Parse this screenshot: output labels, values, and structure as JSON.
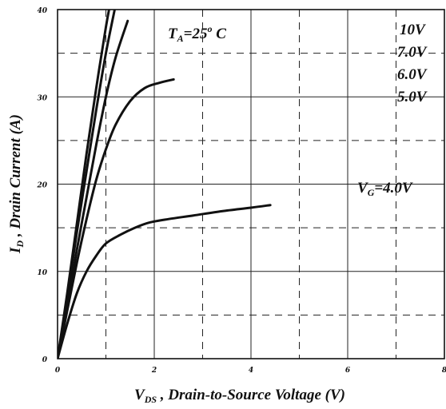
{
  "chart_data": {
    "type": "line",
    "title": "",
    "xlabel": {
      "main": "V",
      "sub": "DS",
      "rest": " , Drain-to-Source Voltage (V)"
    },
    "ylabel": {
      "main": "I",
      "sub": "D",
      "rest": " , Drain Current (A)"
    },
    "xlim": [
      0,
      8
    ],
    "ylim": [
      0,
      40
    ],
    "x_ticks": [
      0,
      2,
      4,
      6,
      8
    ],
    "y_ticks": [
      0,
      10,
      20,
      30,
      40
    ],
    "x_grid_dashed": [
      1,
      3,
      5,
      7
    ],
    "y_grid_dashed": [
      5,
      15,
      25,
      35
    ],
    "grid": true,
    "annotation": {
      "text_main": "T",
      "text_sub": "A",
      "text_rest": "=25",
      "text_sup": "o",
      "text_unit": " C"
    },
    "series": [
      {
        "name": "10V",
        "x": [
          0,
          0.2,
          0.4,
          0.6,
          0.8,
          1.0,
          1.2
        ],
        "y": [
          0,
          7,
          14.5,
          21.5,
          28.5,
          35,
          40.5
        ]
      },
      {
        "name": "7.0V",
        "x": [
          0,
          0.2,
          0.4,
          0.6,
          0.8,
          1.0,
          1.1
        ],
        "y": [
          0,
          7.5,
          15.5,
          23.5,
          31,
          38,
          41
        ]
      },
      {
        "name": "6.0V",
        "x": [
          0,
          0.2,
          0.4,
          0.6,
          0.8,
          1.0,
          1.2,
          1.45
        ],
        "y": [
          0,
          6,
          12.5,
          18.5,
          24.5,
          30,
          34.5,
          38.7
        ]
      },
      {
        "name": "5.0V",
        "x": [
          0,
          0.2,
          0.4,
          0.6,
          0.8,
          1.0,
          1.2,
          1.5,
          1.8,
          2.1,
          2.4
        ],
        "y": [
          0,
          5.5,
          11,
          16,
          20.5,
          24,
          26.8,
          29.5,
          31,
          31.6,
          32
        ]
      },
      {
        "name": "V_G=4.0V",
        "x": [
          0,
          0.2,
          0.4,
          0.6,
          0.8,
          1.0,
          1.3,
          1.6,
          1.9,
          2.3,
          2.8,
          3.4,
          4.0,
          4.4
        ],
        "y": [
          0,
          4,
          7.5,
          10,
          11.8,
          13.2,
          14.2,
          15,
          15.6,
          16,
          16.4,
          16.9,
          17.3,
          17.6
        ]
      }
    ],
    "curve_labels": [
      {
        "text": "10V"
      },
      {
        "text": "7.0V"
      },
      {
        "text": "6.0V"
      },
      {
        "text": "5.0V"
      },
      {
        "text_main": "V",
        "text_sub": "G",
        "text_rest": "=4.0V"
      }
    ],
    "line_color": "#111111",
    "grid_color": "#222222"
  }
}
